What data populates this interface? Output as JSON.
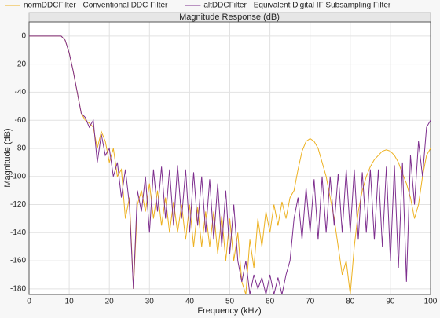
{
  "chart_data": {
    "type": "line",
    "title": "Magnitude Response (dB)",
    "xlabel": "Frequency (kHz)",
    "ylabel": "Magnitude (dB)",
    "x": [
      0,
      1,
      2,
      3,
      4,
      5,
      6,
      7,
      8,
      9,
      10,
      11,
      12,
      13,
      14,
      15,
      16,
      17,
      18,
      19,
      20,
      21,
      22,
      23,
      24,
      25,
      26,
      27,
      28,
      29,
      30,
      31,
      32,
      33,
      34,
      35,
      36,
      37,
      38,
      39,
      40,
      41,
      42,
      43,
      44,
      45,
      46,
      47,
      48,
      49,
      50,
      51,
      52,
      53,
      54,
      55,
      56,
      57,
      58,
      59,
      60,
      61,
      62,
      63,
      64,
      65,
      66,
      67,
      68,
      69,
      70,
      71,
      72,
      73,
      74,
      75,
      76,
      77,
      78,
      79,
      80,
      81,
      82,
      83,
      84,
      85,
      86,
      87,
      88,
      89,
      90,
      91,
      92,
      93,
      94,
      95,
      96,
      97,
      98,
      99,
      100
    ],
    "series": [
      {
        "name": "normDDCFilter - Conventional DDC Filter",
        "color": "#EDB120",
        "values": [
          0,
          0,
          0,
          0,
          0,
          0,
          0,
          0,
          0,
          -3,
          -12,
          -25,
          -40,
          -55,
          -60,
          -62,
          -65,
          -80,
          -68,
          -75,
          -90,
          -80,
          -100,
          -95,
          -130,
          -115,
          -180,
          -120,
          -110,
          -125,
          -105,
          -130,
          -110,
          -135,
          -115,
          -140,
          -118,
          -140,
          -120,
          -145,
          -120,
          -150,
          -122,
          -150,
          -125,
          -150,
          -125,
          -155,
          -128,
          -160,
          -130,
          -160,
          -140,
          -175,
          -184,
          -145,
          -165,
          -130,
          -150,
          -125,
          -140,
          -120,
          -135,
          -118,
          -130,
          -115,
          -110,
          -95,
          -82,
          -75,
          -73,
          -75,
          -80,
          -90,
          -100,
          -115,
          -130,
          -150,
          -170,
          -160,
          -184,
          -150,
          -125,
          -110,
          -100,
          -93,
          -88,
          -85,
          -82,
          -81,
          -82,
          -85,
          -90,
          -98,
          -105,
          -115,
          -130,
          -120,
          -100,
          -85,
          -80
        ]
      },
      {
        "name": "altDDCFilter - Equivalent Digital IF Subsampling Filter",
        "color": "#7E2F8E",
        "values": [
          0,
          0,
          0,
          0,
          0,
          0,
          0,
          0,
          0,
          -3,
          -12,
          -25,
          -40,
          -55,
          -58,
          -65,
          -60,
          -90,
          -70,
          -85,
          -80,
          -100,
          -90,
          -115,
          -95,
          -120,
          -180,
          -110,
          -125,
          -100,
          -140,
          -95,
          -125,
          -93,
          -130,
          -95,
          -135,
          -92,
          -130,
          -95,
          -140,
          -97,
          -135,
          -100,
          -140,
          -102,
          -145,
          -105,
          -150,
          -110,
          -155,
          -120,
          -160,
          -175,
          -160,
          -184,
          -170,
          -180,
          -172,
          -184,
          -170,
          -184,
          -172,
          -184,
          -170,
          -160,
          -130,
          -115,
          -145,
          -108,
          -140,
          -102,
          -145,
          -100,
          -140,
          -100,
          -135,
          -98,
          -140,
          -95,
          -140,
          -95,
          -145,
          -97,
          -140,
          -95,
          -145,
          -95,
          -150,
          -93,
          -160,
          -92,
          -165,
          -90,
          -175,
          -85,
          -120,
          -75,
          -100,
          -65,
          -60
        ]
      }
    ],
    "xlim": [
      0,
      100
    ],
    "ylim": [
      -184,
      10
    ],
    "xticks": [
      0,
      10,
      20,
      30,
      40,
      50,
      60,
      70,
      80,
      90,
      100
    ],
    "yticks": [
      -180,
      -160,
      -140,
      -120,
      -100,
      -80,
      -60,
      -40,
      -20,
      0
    ],
    "grid": true
  }
}
